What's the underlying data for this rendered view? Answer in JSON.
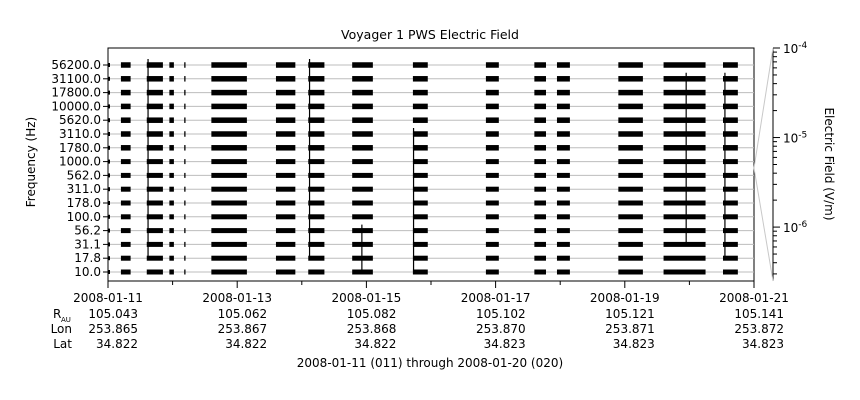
{
  "chart_data": {
    "type": "heatmap",
    "title": "Voyager 1 PWS Electric Field",
    "ylabel": "Frequency (Hz)",
    "colorbar_label": "Electric Field (V/m)",
    "colorbar_ticks": [
      {
        "base": "10",
        "exp": "-4",
        "value": 0.0001
      },
      {
        "base": "10",
        "exp": "-5",
        "value": 1e-05
      },
      {
        "base": "10",
        "exp": "-6",
        "value": 1e-06
      }
    ],
    "colorbar_range": [
      2.5e-07,
      0.0001
    ],
    "colorbar_scale": "log",
    "channels_hz": [
      "10.0",
      "17.8",
      "31.1",
      "56.2",
      "100.0",
      "178.0",
      "311.0",
      "562.0",
      "1000.0",
      "1780.0",
      "3110.0",
      "5620.0",
      "10000.0",
      "17800.0",
      "31100.0",
      "56200.0"
    ],
    "xlim": [
      "2008-01-11",
      "2008-01-21"
    ],
    "x_tick_labels": [
      "2008-01-11",
      "2008-01-13",
      "2008-01-15",
      "2008-01-17",
      "2008-01-19",
      "2008-01-21"
    ],
    "x_tick_values_days": [
      11,
      12,
      13,
      14,
      15,
      16,
      17,
      18,
      19,
      20,
      21
    ],
    "ephemeris": {
      "labels": {
        "r_main": "R",
        "r_sub": "AU",
        "lon": "Lon",
        "lat": "Lat"
      },
      "R": [
        "105.043",
        "105.062",
        "105.082",
        "105.102",
        "105.121",
        "105.141"
      ],
      "Lon": [
        "253.865",
        "253.867",
        "253.868",
        "253.870",
        "253.871",
        "253.872"
      ],
      "Lat": [
        "34.822",
        "34.822",
        "34.822",
        "34.823",
        "34.823",
        "34.823"
      ]
    },
    "xlabel": "2008-01-11 (011) through 2008-01-20 (020)",
    "data_intervals_days": [
      [
        11.2,
        11.35
      ],
      [
        11.6,
        11.85
      ],
      [
        11.95,
        12.02
      ],
      [
        12.18,
        12.2
      ],
      [
        12.6,
        13.15
      ],
      [
        13.6,
        13.9
      ],
      [
        14.1,
        14.35
      ],
      [
        14.78,
        15.1
      ],
      [
        15.72,
        15.95
      ],
      [
        16.85,
        17.05
      ],
      [
        17.6,
        17.78
      ],
      [
        17.95,
        18.15
      ],
      [
        18.9,
        19.28
      ],
      [
        19.6,
        20.25
      ],
      [
        20.52,
        20.75
      ]
    ],
    "spikes": [
      {
        "day": 11.62,
        "ch_from": 1,
        "ch_to": 15
      },
      {
        "day": 14.12,
        "ch_from": 1,
        "ch_to": 15
      },
      {
        "day": 15.73,
        "ch_from": 0,
        "ch_to": 10
      },
      {
        "day": 19.95,
        "ch_from": 2,
        "ch_to": 14
      },
      {
        "day": 20.55,
        "ch_from": 1,
        "ch_to": 14
      },
      {
        "day": 14.93,
        "ch_from": 0,
        "ch_to": 3
      }
    ]
  }
}
